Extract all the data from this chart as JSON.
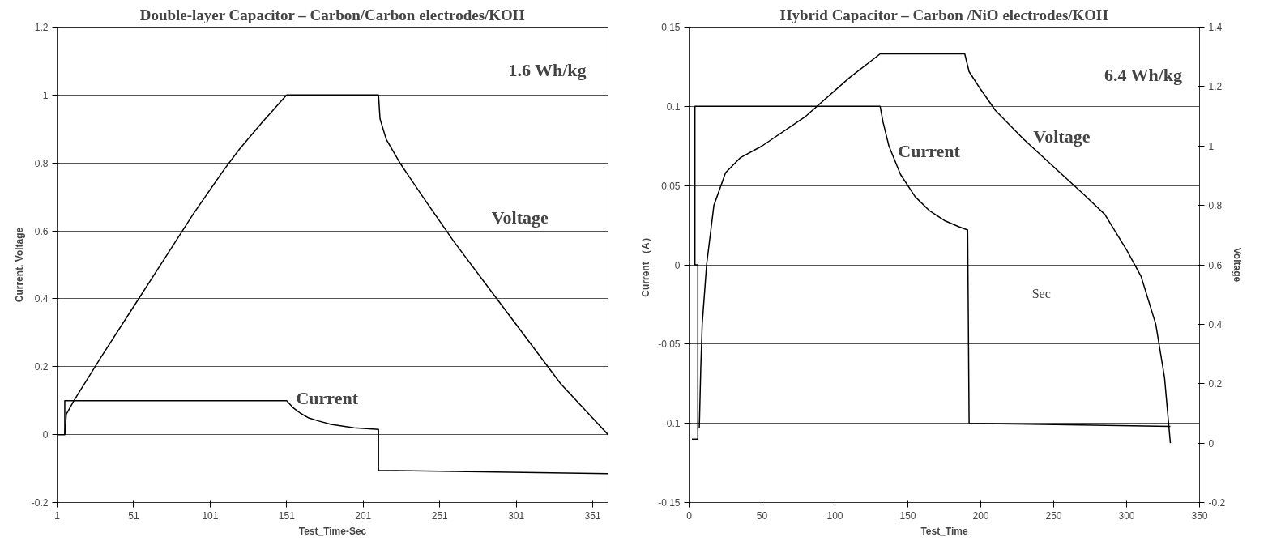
{
  "chart_data": [
    {
      "type": "line",
      "title": "Double-layer Capacitor – Carbon/Carbon electrodes/KOH",
      "xlabel": "Test_Time-Sec",
      "ylabel": "Current, Voltage",
      "xlim": [
        1,
        361
      ],
      "xticks": [
        1,
        51,
        101,
        151,
        201,
        251,
        301,
        351
      ],
      "ylim": [
        -0.2,
        1.2
      ],
      "yticks": [
        -0.2,
        0,
        0.2,
        0.4,
        0.6,
        0.8,
        1,
        1.2
      ],
      "grid": "y",
      "series": [
        {
          "color": "#000000",
          "x": [
            6,
            7,
            12,
            30,
            50,
            70,
            90,
            110,
            120,
            135,
            151,
            211,
            212,
            216,
            225,
            240,
            260,
            280,
            300,
            330,
            361
          ],
          "values": [
            0,
            0.06,
            0.1,
            0.23,
            0.37,
            0.51,
            0.65,
            0.78,
            0.84,
            0.92,
            1.0,
            1.0,
            0.93,
            0.87,
            0.8,
            0.7,
            0.57,
            0.45,
            0.33,
            0.15,
            0
          ]
        },
        {
          "color": "#000000",
          "x": [
            1,
            6,
            6,
            151,
            155,
            160,
            165,
            172,
            180,
            195,
            211,
            211,
            361
          ],
          "values": [
            0,
            0,
            0.1,
            0.1,
            0.08,
            0.063,
            0.05,
            0.04,
            0.03,
            0.02,
            0.015,
            -0.105,
            -0.115
          ]
        }
      ],
      "annotations": [
        "1.6 Wh/kg",
        "Voltage",
        "Current"
      ]
    },
    {
      "type": "line",
      "title": "Hybrid Capacitor – Carbon /NiO electrodes/KOH",
      "xlabel": "Test_Time",
      "ylabel": "Current （A）",
      "y2label": "Voltage",
      "xlim": [
        0,
        350
      ],
      "xticks": [
        0,
        50,
        100,
        150,
        200,
        250,
        300,
        350
      ],
      "ylim": [
        -0.15,
        0.15
      ],
      "yticks": [
        -0.15,
        -0.1,
        -0.05,
        0,
        0.05,
        0.1,
        0.15
      ],
      "y2lim": [
        -0.2,
        1.4
      ],
      "y2ticks": [
        -0.2,
        0,
        0.2,
        0.4,
        0.6,
        0.8,
        1,
        1.2,
        1.4
      ],
      "grid": "y",
      "series": [
        {
          "color": "#000000",
          "x": [
            2,
            6,
            6,
            4,
            4,
            131,
            133,
            137,
            145,
            155,
            165,
            175,
            185,
            191,
            192,
            330
          ],
          "values": [
            -0.11,
            -0.11,
            0,
            0,
            0.1,
            0.1,
            0.09,
            0.075,
            0.057,
            0.043,
            0.034,
            0.028,
            0.024,
            0.022,
            -0.1,
            -0.102
          ]
        },
        {
          "color": "#000000",
          "axis": "y2",
          "x": [
            7,
            8,
            9,
            12,
            17,
            25,
            35,
            50,
            80,
            110,
            131,
            189,
            192,
            200,
            210,
            230,
            250,
            270,
            285,
            300,
            310,
            320,
            326,
            330
          ],
          "values": [
            0.05,
            0.25,
            0.4,
            0.6,
            0.8,
            0.91,
            0.96,
            1.0,
            1.1,
            1.23,
            1.31,
            1.31,
            1.25,
            1.19,
            1.12,
            1.02,
            0.93,
            0.84,
            0.77,
            0.65,
            0.56,
            0.4,
            0.22,
            0.0
          ]
        }
      ],
      "annotations": [
        "6.4 Wh/kg",
        "Sec",
        "Voltage",
        "Current"
      ]
    }
  ]
}
